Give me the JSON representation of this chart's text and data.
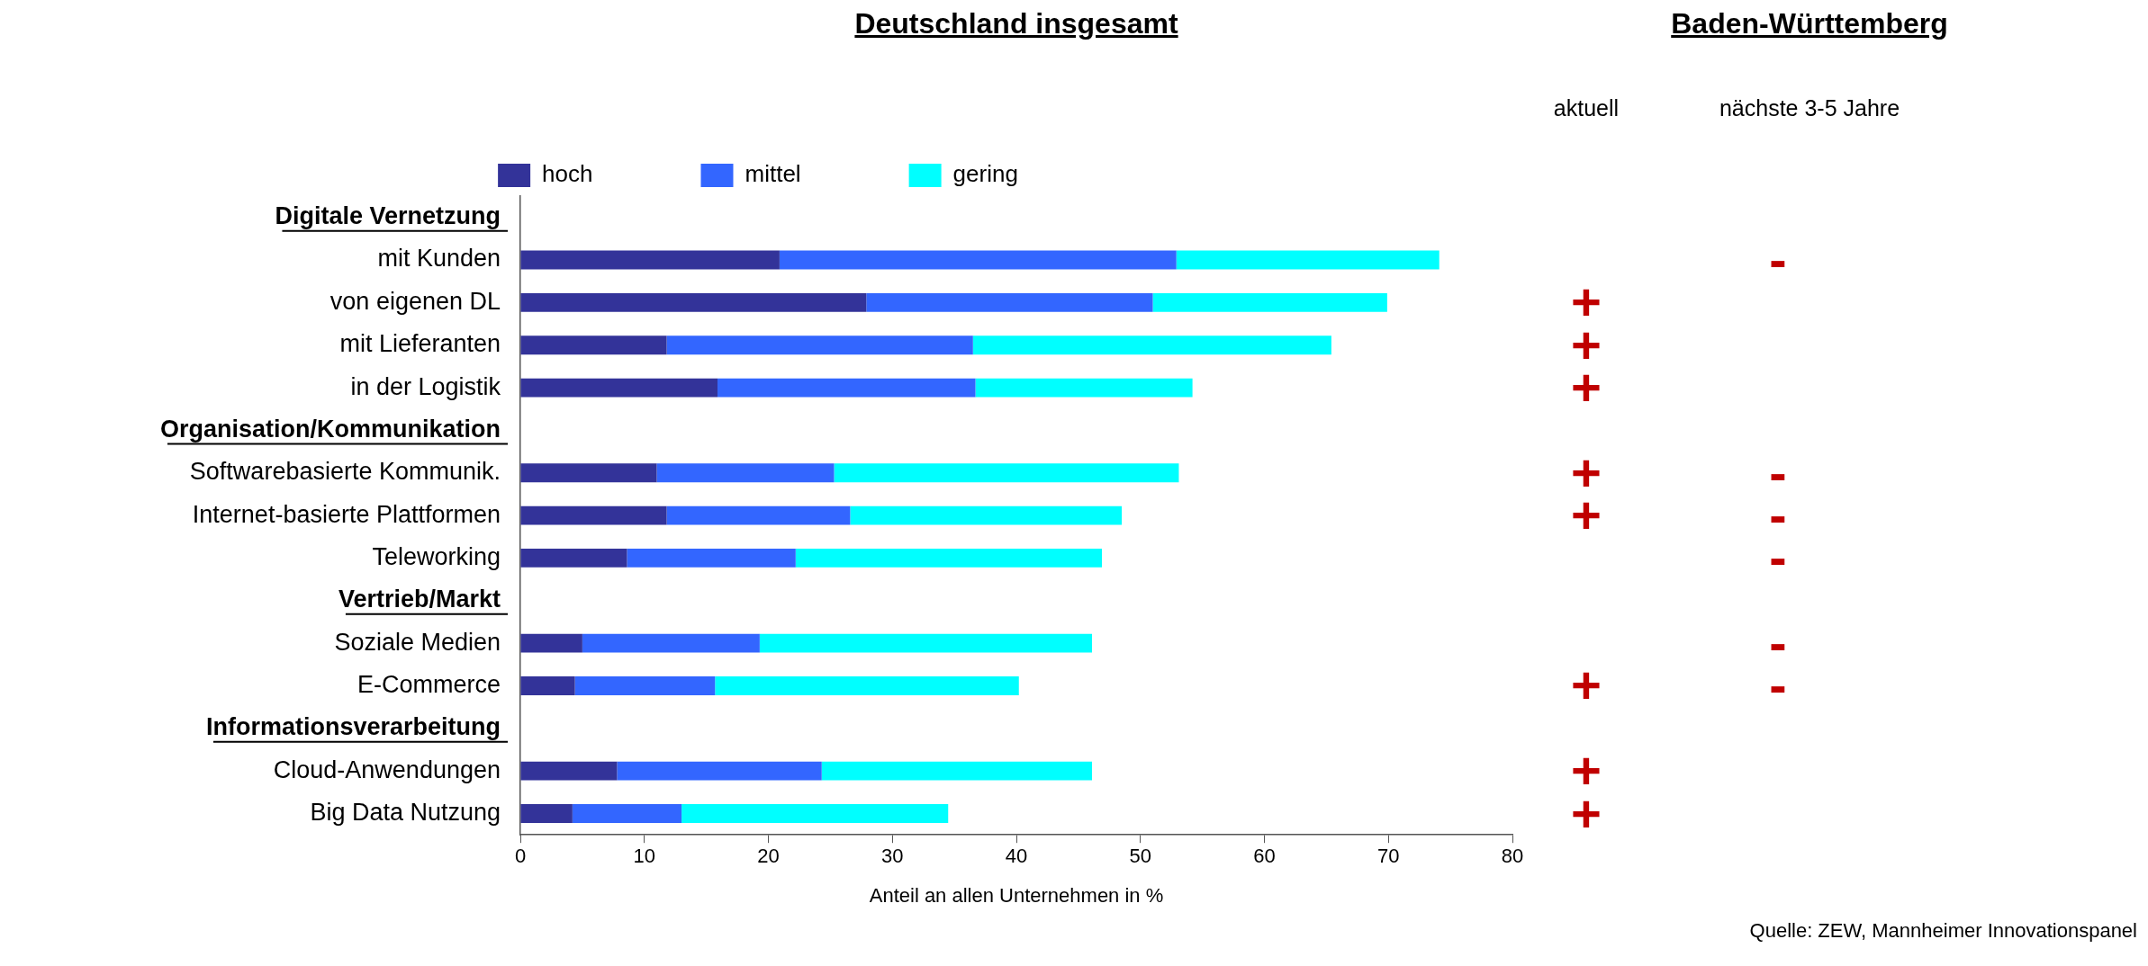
{
  "chart_data": [
    {
      "type": "bar",
      "title": "Deutschland insgesamt",
      "orientation": "horizontal",
      "stacked": true,
      "xlabel": "Anteil an allen Unternehmen in %",
      "categories": [
        "Digitale Vernetzung",
        "mit Kunden",
        "von eigenen DL",
        "mit Lieferanten",
        "in der Logistik",
        "Organisation/Kommunikation",
        "Softwarebasierte Kommunik.",
        "Internet-basierte Plattformen",
        "Teleworking",
        "Vertrieb/Markt",
        "Soziale Medien",
        "E-Commerce",
        "Informationsverarbeitung",
        "Cloud-Anwendungen",
        "Big Data Nutzung"
      ],
      "series": [
        {
          "name": "hoch",
          "color": "#333399",
          "values": [
            null,
            20.9,
            27.9,
            11.8,
            15.9,
            null,
            11.0,
            11.8,
            8.6,
            null,
            5.0,
            4.4,
            null,
            7.8,
            4.2
          ]
        },
        {
          "name": "mittel",
          "color": "#3366ff",
          "values": [
            null,
            32.0,
            23.1,
            24.7,
            20.8,
            null,
            14.3,
            14.8,
            13.6,
            null,
            14.3,
            11.3,
            null,
            16.5,
            8.8
          ]
        },
        {
          "name": "gering",
          "color": "#00ffff",
          "values": [
            null,
            21.2,
            18.9,
            28.9,
            17.5,
            null,
            27.8,
            21.9,
            24.7,
            null,
            26.8,
            24.5,
            null,
            21.8,
            21.5
          ]
        }
      ],
      "xlim": [
        0,
        80
      ],
      "xticks": [
        0,
        10,
        20,
        30,
        40,
        50,
        60,
        70,
        80
      ],
      "grid": false,
      "legend": "top",
      "annotations": [
        "Quelle: ZEW, Mannheimer Innovationspanel"
      ]
    },
    {
      "type": "other",
      "title": "Baden-Württemberg",
      "categories": [
        "aktuell",
        "nächste 3-5 Jahre"
      ],
      "cell_labels": [
        [
          null,
          null
        ],
        [
          null,
          "-"
        ],
        [
          "+",
          null
        ],
        [
          "+",
          null
        ],
        [
          "+",
          null
        ],
        [
          null,
          null
        ],
        [
          "+",
          "-"
        ],
        [
          "+",
          "-"
        ],
        [
          null,
          "-"
        ],
        [
          null,
          null
        ],
        [
          null,
          "-"
        ],
        [
          "+",
          "-"
        ],
        [
          null,
          null
        ],
        [
          "+",
          null
        ],
        [
          "+",
          null
        ]
      ]
    }
  ]
}
